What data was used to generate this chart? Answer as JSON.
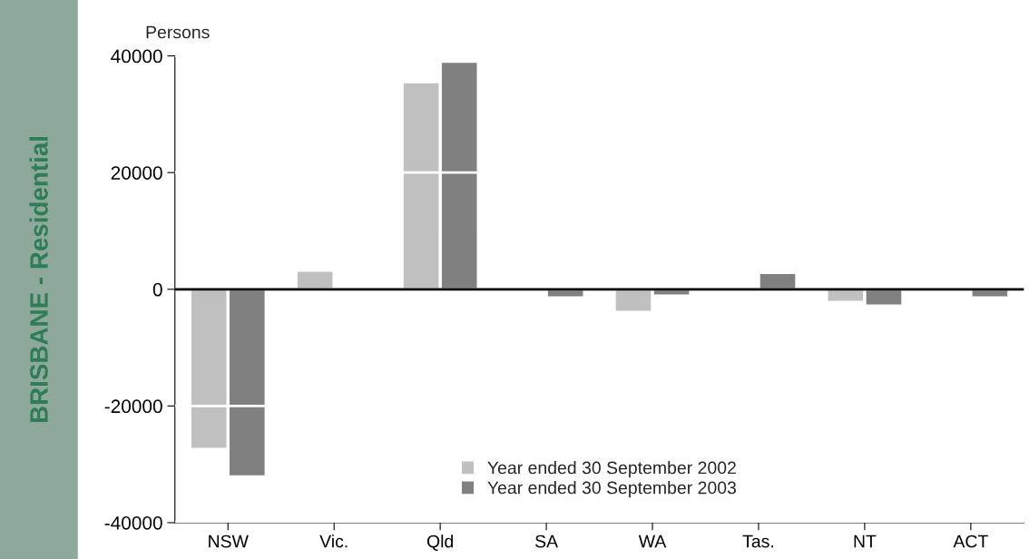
{
  "chart_data": {
    "type": "bar",
    "ylabel": "Persons",
    "categories": [
      "NSW",
      "Vic.",
      "Qld",
      "SA",
      "WA",
      "Tas.",
      "NT",
      "ACT"
    ],
    "series": [
      {
        "name": "Year ended 30 September 2002",
        "color": "#c0c0c0",
        "values": [
          -27300,
          3100,
          35400,
          -200,
          -3800,
          -200,
          -2100,
          -100
        ]
      },
      {
        "name": "Year ended 30 September 2003",
        "color": "#808080",
        "values": [
          -32000,
          null,
          38900,
          -1300,
          -1000,
          2700,
          -2700,
          -1300
        ]
      }
    ],
    "ylim": [
      -40000,
      40000
    ],
    "yticks": [
      -40000,
      -20000,
      0,
      20000,
      40000
    ],
    "grid": "y",
    "ref_lines": [
      {
        "axis": "y",
        "value": 0,
        "color": "#000000"
      }
    ],
    "legend": "bottom",
    "annotations": [
      "BRISBANE - Residential"
    ]
  }
}
